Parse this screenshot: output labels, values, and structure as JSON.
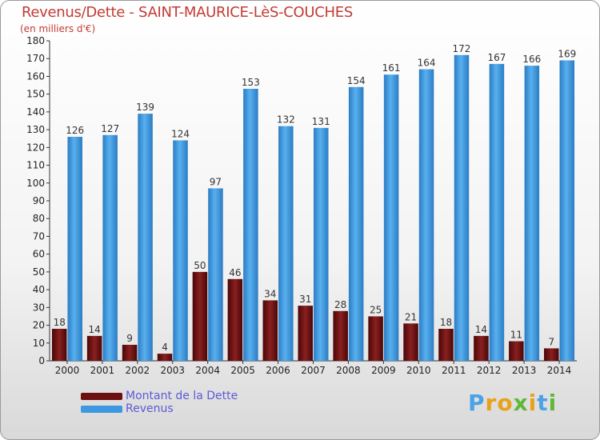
{
  "header": {
    "title": "Revenus/Dette - SAINT-MAURICE-LèS-COUCHES",
    "subtitle": "(en milliers d'€)"
  },
  "legend": {
    "dette_label": "Montant de la Dette",
    "revenus_label": "Revenus"
  },
  "logo": {
    "text": "Proxiti"
  },
  "colors": {
    "dette": "#6b0f10",
    "revenus": "#3c98e0",
    "title": "#c23b33",
    "legend_text": "#5a5ad8"
  },
  "chart_data": {
    "type": "bar",
    "title": "Revenus/Dette - SAINT-MAURICE-LèS-COUCHES",
    "ylabel": "(en milliers d'€)",
    "ylim": [
      0,
      180
    ],
    "ytick_step": 10,
    "grid": false,
    "legend_position": "bottom-left",
    "categories": [
      "2000",
      "2001",
      "2002",
      "2003",
      "2004",
      "2005",
      "2006",
      "2007",
      "2008",
      "2009",
      "2010",
      "2011",
      "2012",
      "2013",
      "2014"
    ],
    "series": [
      {
        "name": "Montant de la Dette",
        "values": [
          18,
          14,
          9,
          4,
          50,
          46,
          34,
          31,
          28,
          25,
          21,
          18,
          14,
          11,
          7
        ]
      },
      {
        "name": "Revenus",
        "values": [
          126,
          127,
          139,
          124,
          97,
          153,
          132,
          131,
          154,
          161,
          164,
          172,
          167,
          166,
          169
        ]
      }
    ]
  }
}
